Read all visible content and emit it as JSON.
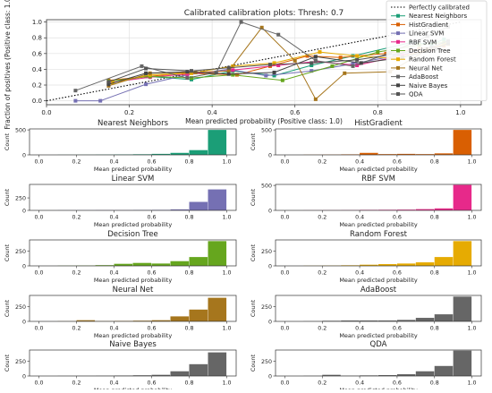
{
  "chart_data": [
    {
      "type": "line",
      "title": "Calibrated calibration plots: Thresh: 0.7",
      "xlabel": "Mean predicted probability (Positive class: 1.0)",
      "ylabel": "Fraction of positives (Positive class: 1.0)",
      "xlim": [
        0,
        1.05
      ],
      "ylim": [
        -0.05,
        1.03
      ],
      "xticks": [
        "0.0",
        "0.2",
        "0.4",
        "0.6",
        "0.8",
        "1.0"
      ],
      "yticks": [
        "0.0",
        "0.2",
        "0.4",
        "0.6",
        "0.8",
        "1.0"
      ],
      "legend_position": "right",
      "reference": {
        "name": "Perfectly calibrated",
        "x": [
          0,
          1
        ],
        "y": [
          0,
          1
        ]
      },
      "series": [
        {
          "name": "Nearest Neighbors",
          "color": "#1b9e77",
          "x": [
            0.15,
            0.24,
            0.35,
            0.45,
            0.55,
            0.64,
            0.74,
            0.88,
            0.93,
            0.96
          ],
          "y": [
            0.22,
            0.31,
            0.27,
            0.38,
            0.32,
            0.45,
            0.57,
            0.74,
            0.72,
            0.78
          ]
        },
        {
          "name": "HistGradient",
          "color": "#d95f02",
          "x": [
            0.15,
            0.25,
            0.33,
            0.46,
            0.54,
            0.63,
            0.71,
            0.82,
            0.9,
            0.96
          ],
          "y": [
            0.26,
            0.31,
            0.35,
            0.33,
            0.44,
            0.57,
            0.55,
            0.6,
            0.66,
            0.7
          ]
        },
        {
          "name": "Linear SVM",
          "color": "#7570b3",
          "x": [
            0.07,
            0.13,
            0.24,
            0.34,
            0.44,
            0.53,
            0.64,
            0.74,
            0.84,
            0.93,
            0.97
          ],
          "y": [
            0.0,
            0.0,
            0.21,
            0.33,
            0.4,
            0.32,
            0.38,
            0.47,
            0.57,
            0.66,
            0.74
          ]
        },
        {
          "name": "RBF SVM",
          "color": "#e7298a",
          "x": [
            0.15,
            0.25,
            0.34,
            0.45,
            0.56,
            0.65,
            0.75,
            0.86,
            0.93,
            0.97
          ],
          "y": [
            0.23,
            0.3,
            0.34,
            0.39,
            0.45,
            0.5,
            0.45,
            0.58,
            0.65,
            0.74
          ]
        },
        {
          "name": "Decision Tree",
          "color": "#66a61e",
          "x": [
            0.15,
            0.25,
            0.35,
            0.45,
            0.57,
            0.69,
            0.8,
            0.9,
            0.96
          ],
          "y": [
            0.25,
            0.31,
            0.29,
            0.33,
            0.26,
            0.44,
            0.62,
            0.71,
            0.74
          ]
        },
        {
          "name": "Random Forest",
          "color": "#e6ab02",
          "x": [
            0.16,
            0.25,
            0.35,
            0.45,
            0.55,
            0.66,
            0.75,
            0.84,
            0.93,
            0.97
          ],
          "y": [
            0.23,
            0.33,
            0.35,
            0.44,
            0.48,
            0.62,
            0.57,
            0.54,
            0.66,
            0.74
          ]
        },
        {
          "name": "Neural Net",
          "color": "#a6761d",
          "x": [
            0.15,
            0.25,
            0.36,
            0.44,
            0.52,
            0.6,
            0.65,
            0.72,
            0.83,
            0.92,
            0.97
          ],
          "y": [
            0.19,
            0.35,
            0.36,
            0.38,
            0.93,
            0.51,
            0.02,
            0.35,
            0.37,
            0.65,
            0.72
          ]
        },
        {
          "name": "AdaBoost",
          "color": "#666666",
          "x": [
            0.07,
            0.23,
            0.34,
            0.41,
            0.47,
            0.56,
            0.65,
            0.74,
            0.83,
            0.92,
            0.97
          ],
          "y": [
            0.13,
            0.44,
            0.29,
            0.36,
            1.0,
            0.84,
            0.51,
            0.44,
            0.61,
            0.82,
            0.94
          ]
        },
        {
          "name": "Naive Bayes",
          "color": "#444444",
          "x": [
            0.15,
            0.24,
            0.34,
            0.44,
            0.55,
            0.65,
            0.76,
            0.86,
            0.94,
            0.97
          ],
          "y": [
            0.21,
            0.35,
            0.37,
            0.34,
            0.36,
            0.56,
            0.48,
            0.55,
            0.66,
            0.73
          ]
        },
        {
          "name": "QDA",
          "color": "#555555",
          "x": [
            0.15,
            0.24,
            0.35,
            0.44,
            0.54,
            0.64,
            0.75,
            0.85,
            0.93,
            0.97
          ],
          "y": [
            0.24,
            0.41,
            0.38,
            0.42,
            0.46,
            0.48,
            0.52,
            0.6,
            0.68,
            0.76
          ]
        }
      ]
    },
    {
      "type": "bar",
      "title": "Nearest Neighbors",
      "color": "#1b9e77",
      "xlabel": "Mean predicted probability",
      "ylabel": "Count",
      "xlim": [
        -0.05,
        1.05
      ],
      "ylim": [
        0,
        520
      ],
      "xticks": [
        "0.0",
        "0.2",
        "0.4",
        "0.6",
        "0.8",
        "1.0"
      ],
      "yticks": [
        "0",
        "500"
      ],
      "bin_width": 0.1,
      "bins": [
        0,
        0.1,
        0.2,
        0.3,
        0.4,
        0.5,
        0.6,
        0.7,
        0.8,
        0.9
      ],
      "values": [
        0,
        2,
        3,
        5,
        8,
        12,
        20,
        40,
        95,
        500
      ]
    },
    {
      "type": "bar",
      "title": "HistGradient",
      "color": "#d95f02",
      "xlabel": "Mean predicted probability",
      "ylabel": "Count",
      "xlim": [
        -0.05,
        1.05
      ],
      "ylim": [
        0,
        520
      ],
      "xticks": [
        "0.0",
        "0.2",
        "0.4",
        "0.6",
        "0.8",
        "1.0"
      ],
      "yticks": [
        "0",
        "500"
      ],
      "bin_width": 0.1,
      "bins": [
        0,
        0.1,
        0.2,
        0.3,
        0.4,
        0.5,
        0.6,
        0.7,
        0.8,
        0.9
      ],
      "values": [
        0,
        3,
        5,
        10,
        40,
        15,
        20,
        15,
        30,
        500
      ]
    },
    {
      "type": "bar",
      "title": "Linear SVM",
      "color": "#7570b3",
      "xlabel": "Mean predicted probability",
      "ylabel": "Count",
      "xlim": [
        -0.05,
        1.05
      ],
      "ylim": [
        0,
        520
      ],
      "xticks": [
        "0.0",
        "0.2",
        "0.4",
        "0.6",
        "0.8",
        "1.0"
      ],
      "yticks": [
        "0",
        "250"
      ],
      "bin_width": 0.1,
      "bins": [
        0,
        0.1,
        0.2,
        0.3,
        0.4,
        0.5,
        0.6,
        0.7,
        0.8,
        0.9
      ],
      "values": [
        0,
        2,
        3,
        5,
        5,
        8,
        10,
        20,
        170,
        420
      ]
    },
    {
      "type": "bar",
      "title": "RBF SVM",
      "color": "#e7298a",
      "xlabel": "Mean predicted probability",
      "ylabel": "Count",
      "xlim": [
        -0.05,
        1.05
      ],
      "ylim": [
        0,
        520
      ],
      "xticks": [
        "0.0",
        "0.2",
        "0.4",
        "0.6",
        "0.8",
        "1.0"
      ],
      "yticks": [
        "0",
        "500"
      ],
      "bin_width": 0.1,
      "bins": [
        0,
        0.1,
        0.2,
        0.3,
        0.4,
        0.5,
        0.6,
        0.7,
        0.8,
        0.9
      ],
      "values": [
        0,
        2,
        3,
        5,
        10,
        12,
        15,
        25,
        40,
        510
      ]
    },
    {
      "type": "bar",
      "title": "Decision Tree",
      "color": "#66a61e",
      "xlabel": "Mean predicted probability",
      "ylabel": "Count",
      "xlim": [
        -0.05,
        1.05
      ],
      "ylim": [
        0,
        440
      ],
      "xticks": [
        "0.0",
        "0.2",
        "0.4",
        "0.6",
        "0.8",
        "1.0"
      ],
      "yticks": [
        "0",
        "250"
      ],
      "bin_width": 0.1,
      "bins": [
        0,
        0.1,
        0.2,
        0.3,
        0.4,
        0.5,
        0.6,
        0.7,
        0.8,
        0.9
      ],
      "values": [
        0,
        3,
        5,
        12,
        35,
        50,
        40,
        80,
        150,
        420
      ]
    },
    {
      "type": "bar",
      "title": "Random Forest",
      "color": "#e6ab02",
      "xlabel": "Mean predicted probability",
      "ylabel": "Count",
      "xlim": [
        -0.05,
        1.05
      ],
      "ylim": [
        0,
        440
      ],
      "xticks": [
        "0.0",
        "0.2",
        "0.4",
        "0.6",
        "0.8",
        "1.0"
      ],
      "yticks": [
        "0",
        "250"
      ],
      "bin_width": 0.1,
      "bins": [
        0,
        0.1,
        0.2,
        0.3,
        0.4,
        0.5,
        0.6,
        0.7,
        0.8,
        0.9
      ],
      "values": [
        0,
        3,
        5,
        10,
        20,
        30,
        40,
        60,
        150,
        420
      ]
    },
    {
      "type": "bar",
      "title": "Neural Net",
      "color": "#a6761d",
      "xlabel": "Mean predicted probability",
      "ylabel": "Count",
      "xlim": [
        -0.05,
        1.05
      ],
      "ylim": [
        0,
        440
      ],
      "xticks": [
        "0.0",
        "0.2",
        "0.4",
        "0.6",
        "0.8",
        "1.0"
      ],
      "yticks": [
        "0",
        "250"
      ],
      "bin_width": 0.1,
      "bins": [
        0,
        0.1,
        0.2,
        0.3,
        0.4,
        0.5,
        0.6,
        0.7,
        0.8,
        0.9
      ],
      "values": [
        0,
        3,
        20,
        5,
        8,
        12,
        20,
        85,
        200,
        400
      ]
    },
    {
      "type": "bar",
      "title": "AdaBoost",
      "color": "#666666",
      "xlabel": "Mean predicted probability",
      "ylabel": "Count",
      "xlim": [
        -0.05,
        1.05
      ],
      "ylim": [
        0,
        440
      ],
      "xticks": [
        "0.0",
        "0.2",
        "0.4",
        "0.6",
        "0.8",
        "1.0"
      ],
      "yticks": [
        "0",
        "250"
      ],
      "bin_width": 0.1,
      "bins": [
        0,
        0.1,
        0.2,
        0.3,
        0.4,
        0.5,
        0.6,
        0.7,
        0.8,
        0.9
      ],
      "values": [
        0,
        3,
        10,
        15,
        15,
        15,
        25,
        60,
        120,
        420
      ]
    },
    {
      "type": "bar",
      "title": "Naive Bayes",
      "color": "#666666",
      "xlabel": "Mean predicted probability",
      "ylabel": "Count",
      "xlim": [
        -0.05,
        1.05
      ],
      "ylim": [
        0,
        440
      ],
      "xticks": [
        "0.0",
        "0.2",
        "0.4",
        "0.6",
        "0.8",
        "1.0"
      ],
      "yticks": [
        "0",
        "250"
      ],
      "bin_width": 0.1,
      "bins": [
        0,
        0.1,
        0.2,
        0.3,
        0.4,
        0.5,
        0.6,
        0.7,
        0.8,
        0.9
      ],
      "values": [
        0,
        2,
        3,
        5,
        8,
        12,
        20,
        80,
        200,
        400
      ]
    },
    {
      "type": "bar",
      "title": "QDA",
      "color": "#666666",
      "xlabel": "Mean predicted probability",
      "ylabel": "Count",
      "xlim": [
        -0.05,
        1.05
      ],
      "ylim": [
        0,
        440
      ],
      "xticks": [
        "0.0",
        "0.2",
        "0.4",
        "0.6",
        "0.8",
        "1.0"
      ],
      "yticks": [
        "0",
        "250"
      ],
      "bin_width": 0.1,
      "bins": [
        0,
        0.1,
        0.2,
        0.3,
        0.4,
        0.5,
        0.6,
        0.7,
        0.8,
        0.9
      ],
      "values": [
        0,
        3,
        20,
        5,
        10,
        15,
        30,
        80,
        170,
        430
      ]
    }
  ]
}
